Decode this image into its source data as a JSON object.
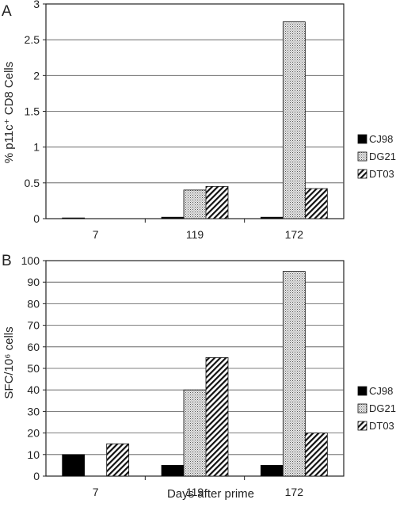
{
  "palette": {
    "axis": "#222222",
    "grid": "#555555",
    "cj98": "#000000",
    "dg21": "#d9d9d9",
    "dt03": "#ffffff"
  },
  "chart_data": [
    {
      "type": "bar",
      "panel_label": "A",
      "categories": [
        "7",
        "119",
        "172"
      ],
      "ylabel": "% p11c⁺ CD8 Cells",
      "ylim": [
        0,
        3
      ],
      "yticks": [
        "0",
        "0.5",
        "1",
        "1.5",
        "2",
        "2.5",
        "3"
      ],
      "grid": true,
      "legend_position": "right",
      "series": [
        {
          "name": "CJ98",
          "values": [
            0.01,
            0.02,
            0.02
          ],
          "pattern": "solid"
        },
        {
          "name": "DG21",
          "values": [
            0,
            0.4,
            2.75
          ],
          "pattern": "dots"
        },
        {
          "name": "DT03",
          "values": [
            0,
            0.45,
            0.42
          ],
          "pattern": "hatch"
        }
      ]
    },
    {
      "type": "bar",
      "panel_label": "B",
      "categories": [
        "7",
        "119",
        "172"
      ],
      "ylabel": "SFC/10⁶ cells",
      "xlabel": "Days after prime",
      "ylim": [
        0,
        100
      ],
      "yticks": [
        "0",
        "10",
        "20",
        "30",
        "40",
        "50",
        "60",
        "70",
        "80",
        "90",
        "100"
      ],
      "grid": true,
      "legend_position": "right",
      "series": [
        {
          "name": "CJ98",
          "values": [
            10,
            5,
            5
          ],
          "pattern": "solid"
        },
        {
          "name": "DG21",
          "values": [
            0,
            40,
            95
          ],
          "pattern": "dots"
        },
        {
          "name": "DT03",
          "values": [
            15,
            55,
            20
          ],
          "pattern": "hatch"
        }
      ]
    }
  ]
}
